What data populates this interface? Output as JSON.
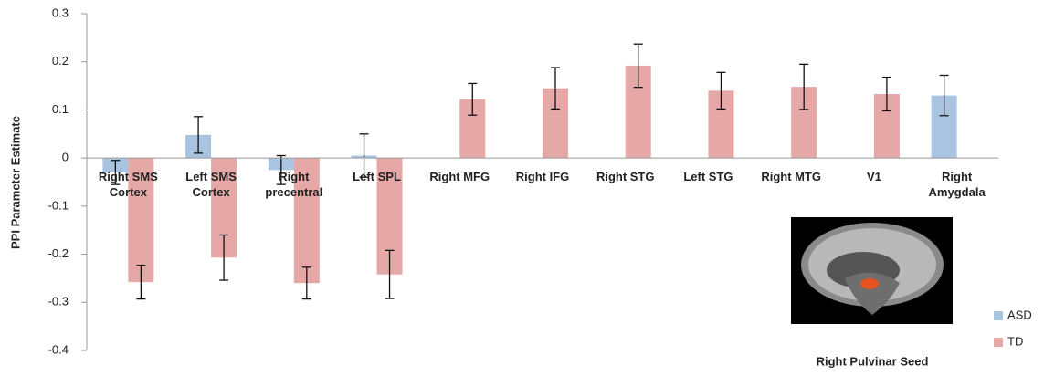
{
  "chart_data": {
    "type": "bar",
    "y_axis_label": "PPI Parameter Estimate",
    "categories": [
      "Right SMS Cortex",
      "Left SMS Cortex",
      "Right precentral",
      "Left SPL",
      "Right MFG",
      "Right IFG",
      "Right STG",
      "Left STG",
      "Right MTG",
      "V1",
      "Right Amygdala"
    ],
    "series": [
      {
        "name": "ASD",
        "color": "#a9c4e0",
        "values": [
          -0.03,
          0.048,
          -0.025,
          0.005,
          null,
          null,
          null,
          null,
          null,
          null,
          0.13
        ],
        "errors": [
          0.025,
          0.038,
          0.03,
          0.045,
          null,
          null,
          null,
          null,
          null,
          null,
          0.042
        ]
      },
      {
        "name": "TD",
        "color": "#e6a8a7",
        "values": [
          -0.258,
          -0.207,
          -0.26,
          -0.242,
          0.122,
          0.145,
          0.192,
          0.14,
          0.148,
          0.133,
          null
        ],
        "errors": [
          0.035,
          0.047,
          0.033,
          0.05,
          0.033,
          0.043,
          0.045,
          0.038,
          0.047,
          0.035,
          null
        ]
      }
    ],
    "ylim": [
      -0.4,
      0.3
    ],
    "yticks": [
      -0.4,
      -0.3,
      -0.2,
      -0.1,
      0,
      0.1,
      0.2,
      0.3
    ],
    "legend": "bottom-right",
    "inset_caption": "Right Pulvinar Seed"
  }
}
